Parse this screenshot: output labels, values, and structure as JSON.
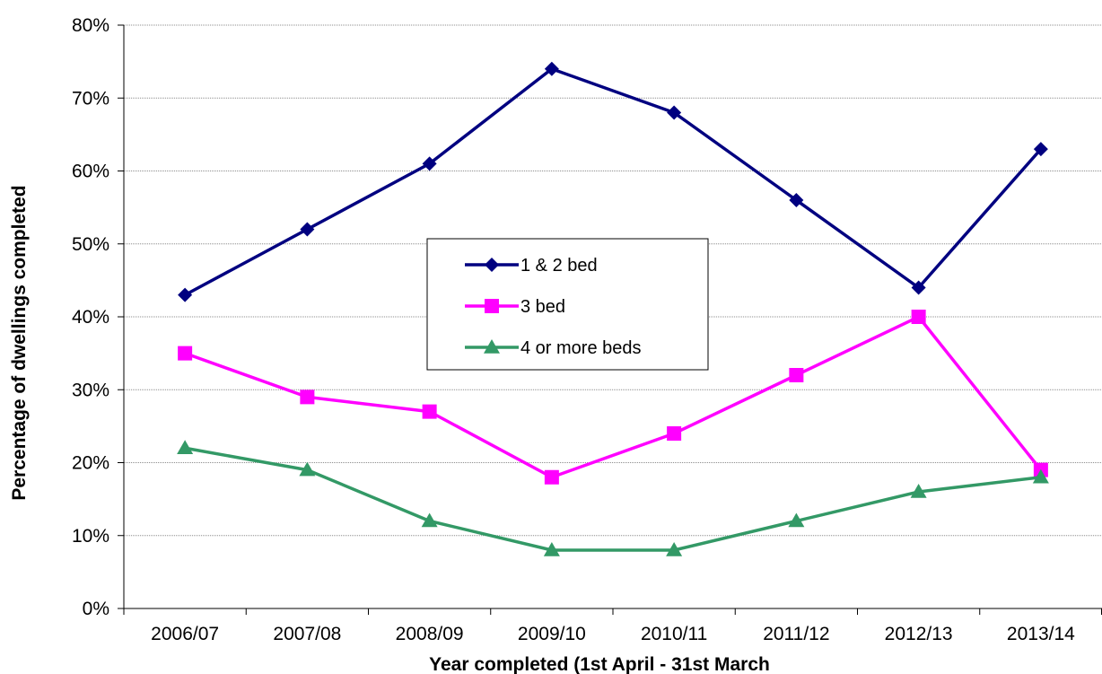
{
  "chart_data": {
    "type": "line",
    "title": "",
    "xlabel": "Year completed (1st April - 31st March",
    "ylabel": "Percentage of dwellings completed",
    "categories": [
      "2006/07",
      "2007/08",
      "2008/09",
      "2009/10",
      "2010/11",
      "2011/12",
      "2012/13",
      "2013/14"
    ],
    "y_ticks": [
      "0%",
      "10%",
      "20%",
      "30%",
      "40%",
      "50%",
      "60%",
      "70%",
      "80%"
    ],
    "ylim": [
      0,
      80
    ],
    "y_unit": "%",
    "grid": true,
    "legend_position": "center",
    "series": [
      {
        "name": "1 & 2 bed",
        "values": [
          43,
          52,
          61,
          74,
          68,
          56,
          44,
          63
        ],
        "color": "#000080",
        "marker": "diamond"
      },
      {
        "name": "3 bed",
        "values": [
          35,
          29,
          27,
          18,
          24,
          32,
          40,
          19
        ],
        "color": "#FF00FF",
        "marker": "square"
      },
      {
        "name": "4 or more beds",
        "values": [
          22,
          19,
          12,
          8,
          8,
          12,
          16,
          18
        ],
        "color": "#339966",
        "marker": "triangle"
      }
    ]
  }
}
